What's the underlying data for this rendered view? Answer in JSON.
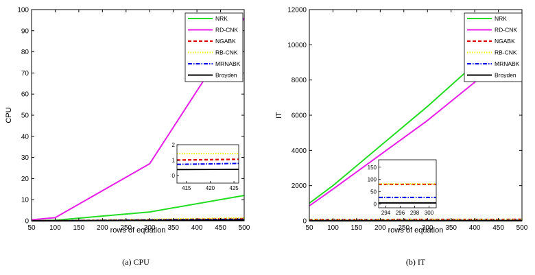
{
  "legend": [
    "NRK",
    "RD-CNK",
    "NGABK",
    "RB-CNK",
    "MRNABK",
    "Broyden"
  ],
  "colors": {
    "NRK": "#22dd22",
    "RD-CNK": "#e81ee8",
    "NGABK": "#dd0000",
    "RB-CNK": "#f5f500",
    "MRNABK": "#0000e6",
    "Broyden": "#000000"
  },
  "chart_data": [
    {
      "type": "line",
      "caption": "(a)  CPU",
      "xlabel": "rows of equation",
      "ylabel": "CPU",
      "xlim": [
        50,
        500
      ],
      "ylim": [
        0,
        100
      ],
      "xticks": [
        50,
        100,
        150,
        200,
        250,
        300,
        350,
        400,
        450,
        500
      ],
      "yticks": [
        0,
        10,
        20,
        30,
        40,
        50,
        60,
        70,
        80,
        90,
        100
      ],
      "x": [
        50,
        100,
        300,
        500
      ],
      "series": [
        {
          "name": "NRK",
          "values": [
            0.1,
            0.3,
            4.2,
            12
          ]
        },
        {
          "name": "RD-CNK",
          "values": [
            0.5,
            1.5,
            27,
            96
          ]
        },
        {
          "name": "NGABK",
          "values": [
            0.02,
            0.05,
            0.5,
            1.0
          ]
        },
        {
          "name": "RB-CNK",
          "values": [
            0.03,
            0.08,
            0.7,
            1.4
          ]
        },
        {
          "name": "MRNABK",
          "values": [
            0.02,
            0.04,
            0.4,
            0.75
          ]
        },
        {
          "name": "Broyden",
          "values": [
            0.01,
            0.02,
            0.2,
            0.4
          ]
        }
      ],
      "inset": {
        "xlim": [
          413,
          426
        ],
        "ylim": [
          -0.5,
          2
        ],
        "xticks": [
          415,
          420,
          425
        ],
        "yticks": [
          0,
          1,
          2
        ],
        "series": [
          {
            "name": "NGABK",
            "values": [
              1.0,
              1.05
            ]
          },
          {
            "name": "RB-CNK",
            "values": [
              1.42,
              1.42
            ]
          },
          {
            "name": "MRNABK",
            "values": [
              0.72,
              0.78
            ]
          },
          {
            "name": "Broyden",
            "values": [
              0.38,
              0.4
            ]
          }
        ]
      }
    },
    {
      "type": "line",
      "caption": "(b)  IT",
      "xlabel": "rows of equation",
      "ylabel": "IT",
      "xlim": [
        50,
        500
      ],
      "ylim": [
        0,
        12000
      ],
      "xticks": [
        50,
        100,
        150,
        200,
        250,
        300,
        350,
        400,
        450,
        500
      ],
      "yticks": [
        0,
        2000,
        4000,
        6000,
        8000,
        10000,
        12000
      ],
      "x": [
        50,
        100,
        300,
        500
      ],
      "series": [
        {
          "name": "NRK",
          "values": [
            1000,
            2000,
            6500,
            11300
          ]
        },
        {
          "name": "RD-CNK",
          "values": [
            850,
            1800,
            5700,
            10050
          ]
        },
        {
          "name": "NGABK",
          "values": [
            70,
            73,
            78,
            80
          ]
        },
        {
          "name": "RB-CNK",
          "values": [
            72,
            75,
            80,
            82
          ]
        },
        {
          "name": "MRNABK",
          "values": [
            20,
            22,
            25,
            27
          ]
        },
        {
          "name": "Broyden",
          "values": [
            5,
            5,
            6,
            6
          ]
        }
      ],
      "inset": {
        "xlim": [
          293,
          301
        ],
        "ylim": [
          -15,
          180
        ],
        "xticks": [
          294,
          296,
          298,
          300
        ],
        "yticks": [
          0,
          50,
          100,
          150
        ],
        "series": [
          {
            "name": "NGABK",
            "values": [
              80,
              80
            ]
          },
          {
            "name": "RB-CNK",
            "values": [
              82,
              82
            ]
          },
          {
            "name": "MRNABK",
            "values": [
              27,
              27
            ]
          },
          {
            "name": "Broyden",
            "values": [
              5,
              5
            ]
          }
        ]
      }
    }
  ]
}
